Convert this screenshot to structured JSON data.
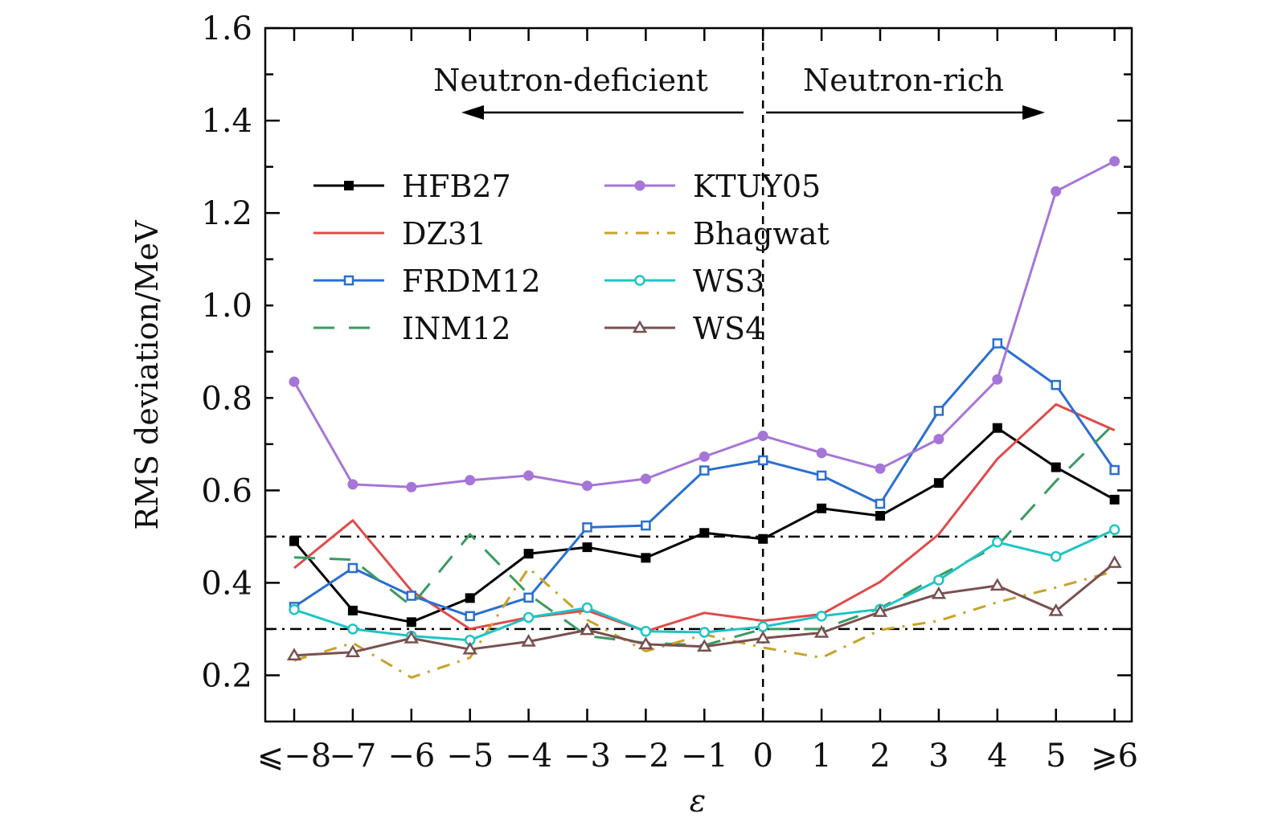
{
  "chart_data": {
    "type": "line",
    "title": "",
    "xlabel": "ε",
    "ylabel": "RMS deviation/MeV",
    "categories": [
      "⩽−8",
      "−7",
      "−6",
      "−5",
      "−4",
      "−3",
      "−2",
      "−1",
      "0",
      "1",
      "2",
      "3",
      "4",
      "5",
      "⩾6"
    ],
    "ylim": [
      0.1,
      1.6
    ],
    "yticks": [
      "0.2",
      "0.4",
      "0.6",
      "0.8",
      "1.0",
      "1.2",
      "1.4",
      "1.6"
    ],
    "annotations": {
      "left": "Neutron-deficient",
      "right": "Neutron-rich"
    },
    "reference_lines": [
      0.5,
      0.3
    ],
    "series": [
      {
        "name": "HFB27",
        "color": "#000000",
        "dash": "",
        "marker": "square-filled",
        "values": [
          0.49,
          0.34,
          0.315,
          0.367,
          0.463,
          0.477,
          0.454,
          0.508,
          0.495,
          0.561,
          0.545,
          0.616,
          0.735,
          0.65,
          0.58
        ]
      },
      {
        "name": "DZ31",
        "color": "#e04a4a",
        "dash": "",
        "marker": "none",
        "values": [
          0.432,
          0.535,
          0.383,
          0.3,
          0.325,
          0.34,
          0.295,
          0.335,
          0.318,
          0.332,
          0.402,
          0.505,
          0.668,
          0.786,
          0.73
        ]
      },
      {
        "name": "FRDM12",
        "color": "#2a6fd0",
        "dash": "",
        "marker": "square-open",
        "values": [
          0.348,
          0.432,
          0.372,
          0.328,
          0.368,
          0.52,
          0.524,
          0.643,
          0.665,
          0.632,
          0.571,
          0.772,
          0.918,
          0.828,
          0.644
        ]
      },
      {
        "name": "INM12",
        "color": "#3a9a62",
        "dash": "26,18",
        "marker": "none",
        "values": [
          0.455,
          0.45,
          0.35,
          0.505,
          0.375,
          0.285,
          0.27,
          0.265,
          0.3,
          0.3,
          0.345,
          0.415,
          0.48,
          0.62,
          0.745
        ]
      },
      {
        "name": "KTUY05",
        "color": "#a675d8",
        "dash": "",
        "marker": "circle-filled",
        "values": [
          0.835,
          0.613,
          0.607,
          0.622,
          0.632,
          0.61,
          0.625,
          0.673,
          0.718,
          0.681,
          0.647,
          0.711,
          0.84,
          1.247,
          1.312
        ]
      },
      {
        "name": "Bhagwat",
        "color": "#c9a227",
        "dash": "16,10,3,10",
        "marker": "none",
        "values": [
          0.232,
          0.27,
          0.195,
          0.238,
          0.432,
          0.32,
          0.252,
          0.288,
          0.26,
          0.238,
          0.298,
          0.318,
          0.358,
          0.39,
          0.425
        ]
      },
      {
        "name": "WS3",
        "color": "#20c4c4",
        "dash": "",
        "marker": "circle-open",
        "values": [
          0.342,
          0.3,
          0.285,
          0.276,
          0.325,
          0.346,
          0.295,
          0.293,
          0.305,
          0.328,
          0.343,
          0.406,
          0.488,
          0.457,
          0.515
        ]
      },
      {
        "name": "WS4",
        "color": "#7a5050",
        "dash": "",
        "marker": "triangle-open",
        "values": [
          0.243,
          0.25,
          0.28,
          0.256,
          0.273,
          0.298,
          0.267,
          0.262,
          0.28,
          0.292,
          0.337,
          0.376,
          0.394,
          0.339,
          0.443
        ]
      }
    ]
  }
}
